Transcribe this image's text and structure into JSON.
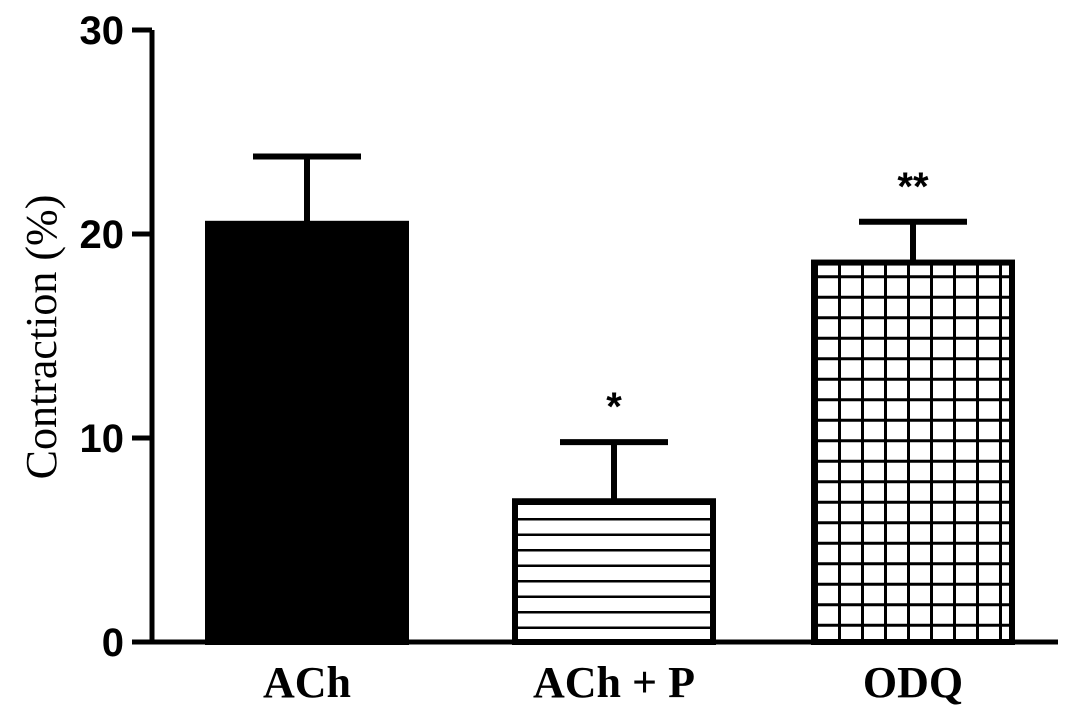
{
  "chart_data": {
    "type": "bar",
    "categories": [
      "ACh",
      "ACh + P",
      "ODQ"
    ],
    "values": [
      20.5,
      6.9,
      18.6
    ],
    "errors": [
      3.3,
      2.9,
      2.0
    ],
    "significance": [
      "",
      "*",
      "**"
    ],
    "fills": [
      "solid",
      "horizontal-lines",
      "grid"
    ],
    "xlabel": "",
    "ylabel": "Contraction (%)",
    "ylim": [
      0,
      30
    ],
    "yticks": [
      0,
      10,
      20,
      30
    ],
    "grid": false,
    "colors": {
      "bar": "#000000",
      "background": "#ffffff"
    }
  }
}
